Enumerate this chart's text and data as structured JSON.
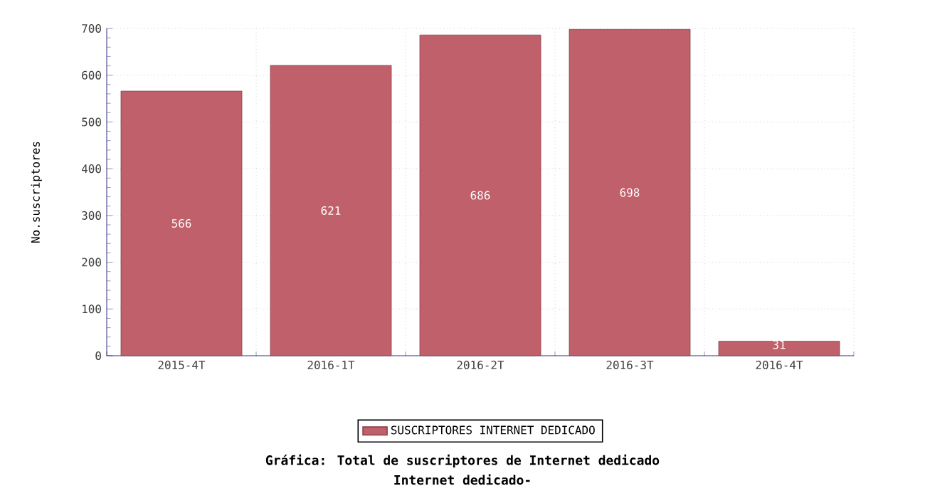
{
  "chart_data": {
    "type": "bar",
    "title": "Gráfica: Total de suscriptores de Internet dedicado",
    "subtitle": "Internet dedicado-",
    "ylabel": "No.suscriptores",
    "categories": [
      "2015-4T",
      "2016-1T",
      "2016-2T",
      "2016-3T",
      "2016-4T"
    ],
    "series": [
      {
        "name": "SUSCRIPTORES INTERNET DEDICADO",
        "color": "#c0606a",
        "values": [
          566,
          621,
          686,
          698,
          31
        ]
      }
    ],
    "ylim": [
      0,
      700
    ],
    "yticks": [
      0,
      100,
      200,
      300,
      400,
      500,
      600,
      700
    ],
    "grid": true,
    "legend": "bottom",
    "data_labels": true
  }
}
